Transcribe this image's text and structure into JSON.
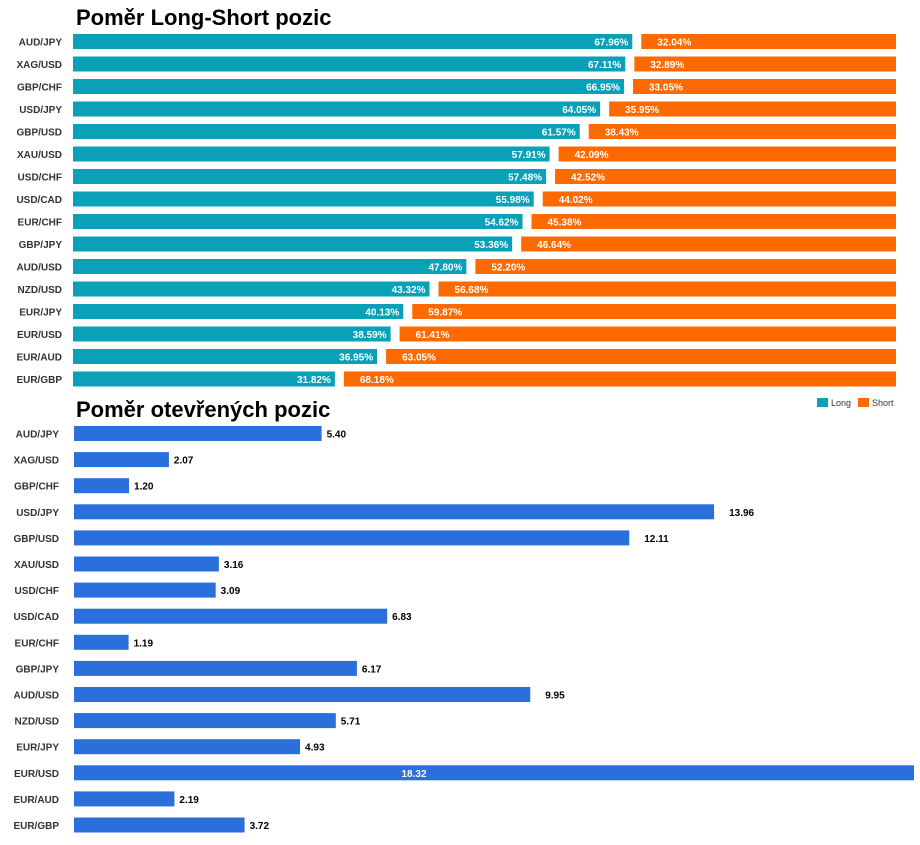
{
  "colors": {
    "long": "#0aa1b8",
    "short": "#ff6a00",
    "open": "#2a6fdb"
  },
  "chart_data": [
    {
      "type": "bar",
      "orientation": "horizontal",
      "stacked": true,
      "title": "Poměr Long-Short pozic",
      "categories": [
        "AUD/JPY",
        "XAG/USD",
        "GBP/CHF",
        "USD/JPY",
        "GBP/USD",
        "XAU/USD",
        "USD/CHF",
        "USD/CAD",
        "EUR/CHF",
        "GBP/JPY",
        "AUD/USD",
        "NZD/USD",
        "EUR/JPY",
        "EUR/USD",
        "EUR/AUD",
        "EUR/GBP"
      ],
      "series": [
        {
          "name": "Long",
          "values": [
            67.96,
            67.11,
            66.95,
            64.05,
            61.57,
            57.91,
            57.48,
            55.98,
            54.62,
            53.36,
            47.8,
            43.32,
            40.13,
            38.59,
            36.95,
            31.82
          ],
          "labels": [
            "67.96%",
            "67.11%",
            "66.95%",
            "64.05%",
            "61.57%",
            "57.91%",
            "57.48%",
            "55.98%",
            "54.62%",
            "53.36%",
            "47.80%",
            "43.32%",
            "40.13%",
            "38.59%",
            "36.95%",
            "31.82%"
          ]
        },
        {
          "name": "Short",
          "values": [
            32.04,
            32.89,
            33.05,
            35.95,
            38.43,
            42.09,
            42.52,
            44.02,
            45.38,
            46.64,
            52.2,
            56.68,
            59.87,
            61.41,
            63.05,
            68.18
          ],
          "labels": [
            "32.04%",
            "32.89%",
            "33.05%",
            "35.95%",
            "38.43%",
            "42.09%",
            "42.52%",
            "44.02%",
            "45.38%",
            "46.64%",
            "52.20%",
            "56.68%",
            "59.87%",
            "61.41%",
            "63.05%",
            "68.18%"
          ]
        }
      ],
      "xlim": [
        0,
        100
      ],
      "legend": "bottom-right",
      "grid": false
    },
    {
      "type": "bar",
      "orientation": "horizontal",
      "title": "Poměr otevřených pozic",
      "categories": [
        "AUD/JPY",
        "XAG/USD",
        "GBP/CHF",
        "USD/JPY",
        "GBP/USD",
        "XAU/USD",
        "USD/CHF",
        "USD/CAD",
        "EUR/CHF",
        "GBP/JPY",
        "AUD/USD",
        "NZD/USD",
        "EUR/JPY",
        "EUR/USD",
        "EUR/AUD",
        "EUR/GBP"
      ],
      "values": [
        5.4,
        2.07,
        1.2,
        13.96,
        12.11,
        3.16,
        3.09,
        6.83,
        1.19,
        6.17,
        9.95,
        5.71,
        4.93,
        18.32,
        2.19,
        3.72
      ],
      "labels": [
        "5.40",
        "2.07",
        "1.20",
        "13.96",
        "12.11",
        "3.16",
        "3.09",
        "6.83",
        "1.19",
        "6.17",
        "9.95",
        "5.71",
        "4.93",
        "18.32",
        "2.19",
        "3.72"
      ],
      "xlim": [
        0,
        18.32
      ],
      "grid": false
    }
  ]
}
